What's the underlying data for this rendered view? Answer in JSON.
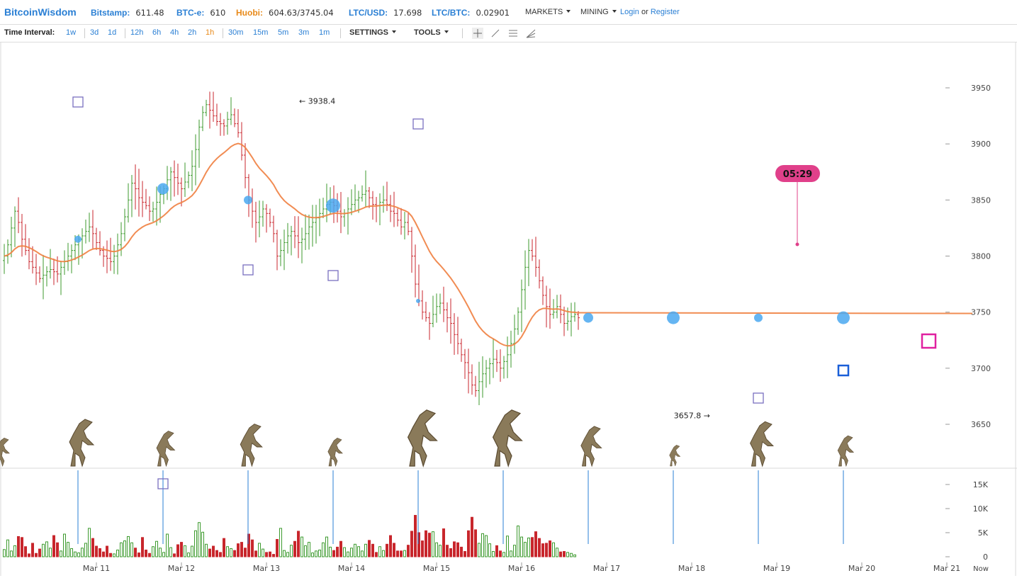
{
  "header": {
    "brand": "BitcoinWisdom",
    "tickers": [
      {
        "label": "Bitstamp:",
        "value": "611.48",
        "highlight": false
      },
      {
        "label": "BTC-e:",
        "value": "610",
        "highlight": false
      },
      {
        "label": "Huobi:",
        "value": "604.63/3745.04",
        "highlight": true
      },
      {
        "label": "LTC/USD:",
        "value": "17.698",
        "highlight": false
      },
      {
        "label": "LTC/BTC:",
        "value": "0.02901",
        "highlight": false
      }
    ],
    "menus": [
      "MARKETS",
      "MINING"
    ],
    "login": "Login",
    "or": "or",
    "register": "Register"
  },
  "toolbar": {
    "time_interval_label": "Time Interval:",
    "intervals": [
      "1w",
      "3d",
      "1d",
      "12h",
      "6h",
      "4h",
      "2h",
      "1h",
      "30m",
      "15m",
      "5m",
      "3m",
      "1m"
    ],
    "active_interval": "1h",
    "settings_label": "SETTINGS",
    "tools_label": "TOOLS",
    "tool_icons": [
      "crosshair-icon",
      "line-tool-icon",
      "parallel-lines-icon",
      "fan-tool-icon"
    ]
  },
  "chart_data": {
    "type": "candlestick",
    "price_axis": {
      "ticks": [
        3650,
        3700,
        3750,
        3800,
        3850,
        3900,
        3950
      ],
      "ylim": [
        3620,
        3985
      ]
    },
    "volume_axis": {
      "ticks": [
        0,
        5000,
        10000,
        15000
      ],
      "tick_labels": [
        "0",
        "5K",
        "10K",
        "15K"
      ]
    },
    "x_ticks": [
      "Mar 11",
      "Mar 12",
      "Mar 13",
      "Mar 14",
      "Mar 15",
      "Mar 16",
      "Mar 17",
      "Mar 18",
      "Mar 19",
      "Mar 20",
      "Mar 21"
    ],
    "now_label": "Now",
    "annotations": {
      "high": {
        "label": "3938.4",
        "value": 3938.4
      },
      "low": {
        "label": "3657.8",
        "value": 3657.8
      },
      "countdown": "05:29"
    },
    "price_path_hourly": [
      3800,
      3810,
      3825,
      3840,
      3830,
      3815,
      3805,
      3795,
      3790,
      3785,
      3780,
      3783,
      3786,
      3788,
      3786,
      3784,
      3790,
      3795,
      3800,
      3805,
      3810,
      3815,
      3818,
      3822,
      3826,
      3820,
      3812,
      3805,
      3800,
      3798,
      3795,
      3800,
      3810,
      3820,
      3835,
      3850,
      3865,
      3860,
      3852,
      3848,
      3845,
      3840,
      3842,
      3848,
      3855,
      3860,
      3868,
      3875,
      3870,
      3865,
      3860,
      3866,
      3872,
      3880,
      3895,
      3915,
      3928,
      3935,
      3930,
      3925,
      3920,
      3918,
      3916,
      3922,
      3926,
      3918,
      3910,
      3890,
      3870,
      3850,
      3840,
      3830,
      3835,
      3842,
      3838,
      3830,
      3820,
      3800,
      3805,
      3812,
      3818,
      3822,
      3818,
      3812,
      3815,
      3820,
      3826,
      3830,
      3834,
      3838,
      3842,
      3846,
      3848,
      3845,
      3840,
      3835,
      3838,
      3842,
      3846,
      3850,
      3852,
      3855,
      3858,
      3852,
      3846,
      3845,
      3848,
      3850,
      3846,
      3840,
      3838,
      3832,
      3826,
      3830,
      3822,
      3800,
      3775,
      3760,
      3750,
      3745,
      3740,
      3748,
      3755,
      3758,
      3752,
      3745,
      3740,
      3730,
      3722,
      3712,
      3705,
      3696,
      3685,
      3680,
      3688,
      3695,
      3700,
      3704,
      3708,
      3705,
      3700,
      3706,
      3712,
      3722,
      3735,
      3750,
      3770,
      3790,
      3805,
      3800,
      3790,
      3778,
      3765,
      3755,
      3748,
      3750,
      3755,
      3748,
      3740,
      3742,
      3746,
      3748,
      3745
    ],
    "volume_hourly": [
      1500,
      3500,
      1200,
      2300,
      4200,
      4000,
      2100,
      600,
      2800,
      700,
      1600,
      2600,
      3100,
      1800,
      4400,
      2900,
      1200,
      4700,
      3000,
      1700,
      1000,
      800,
      1800,
      2800,
      5900,
      3800,
      2200,
      1700,
      1000,
      2200,
      700,
      600,
      1400,
      2900,
      3300,
      4200,
      2900,
      1800,
      800,
      4000,
      1400,
      700,
      2100,
      3200,
      1800,
      900,
      4700,
      1900,
      600,
      2500,
      3000,
      2300,
      800,
      2200,
      5400,
      7100,
      5100,
      2600,
      1600,
      2200,
      1300,
      900,
      3800,
      2100,
      1700,
      1300,
      2700,
      3000,
      1800,
      4700,
      3500,
      1200,
      2800,
      1600,
      900,
      1000,
      500,
      3600,
      5900,
      1300,
      900,
      2400,
      3200,
      5300,
      4100,
      2300,
      3000,
      800,
      1200,
      1400,
      2900,
      4100,
      2000,
      1300,
      2000,
      3200,
      1900,
      1000,
      1800,
      2600,
      2100,
      1200,
      2600,
      3400,
      2600,
      900,
      2100,
      1300,
      2600,
      4400,
      2800,
      1200,
      1200,
      1300,
      2400,
      5300,
      8600,
      5000,
      3300,
      5400,
      4900,
      5200,
      2900,
      2400,
      5800,
      2400,
      1700,
      3100,
      2900,
      2000,
      1100,
      5400,
      8200,
      5600,
      2800,
      4800,
      4400,
      2700,
      1100,
      2300,
      1200,
      900,
      4300,
      1200,
      2400,
      6400,
      4100,
      3000,
      3900,
      4000,
      5200,
      3800,
      2700,
      2800,
      3300,
      2900,
      1800,
      1000,
      1100,
      900,
      700,
      400
    ]
  }
}
